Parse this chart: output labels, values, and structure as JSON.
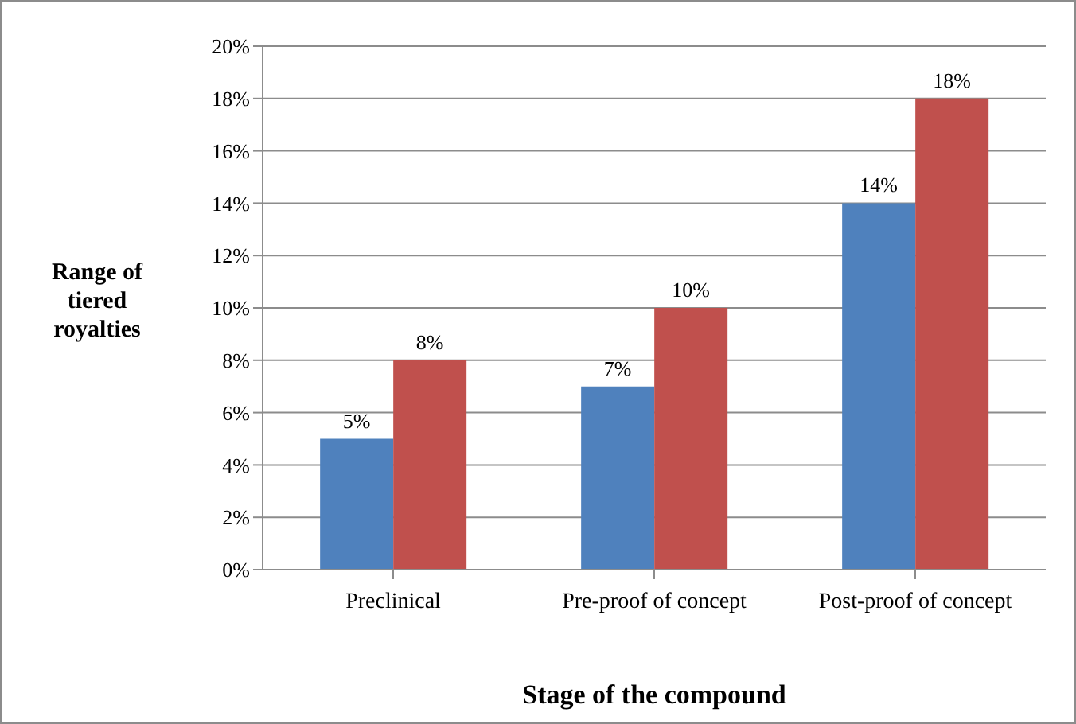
{
  "chart_data": {
    "type": "bar",
    "xlabel": "Stage of the compound",
    "ylabel": "Range of tiered royalties",
    "categories": [
      "Preclinical",
      "Pre-proof of concept",
      "Post-proof of concept"
    ],
    "series": [
      {
        "color": "#4f81bd",
        "values": [
          5,
          7,
          14
        ],
        "value_labels": [
          "5%",
          "7%",
          "14%"
        ]
      },
      {
        "color": "#c0504d",
        "values": [
          8,
          10,
          18
        ],
        "value_labels": [
          "8%",
          "10%",
          "18%"
        ]
      }
    ],
    "ylim": [
      0,
      20
    ],
    "yticks": [
      {
        "value": 0,
        "label": "0%"
      },
      {
        "value": 2,
        "label": "2%"
      },
      {
        "value": 4,
        "label": "4%"
      },
      {
        "value": 6,
        "label": "6%"
      },
      {
        "value": 8,
        "label": "8%"
      },
      {
        "value": 10,
        "label": "10%"
      },
      {
        "value": 12,
        "label": "12%"
      },
      {
        "value": 14,
        "label": "14%"
      },
      {
        "value": 16,
        "label": "16%"
      },
      {
        "value": 18,
        "label": "18%"
      },
      {
        "value": 20,
        "label": "20%"
      }
    ],
    "grid": "y",
    "legend": false
  }
}
